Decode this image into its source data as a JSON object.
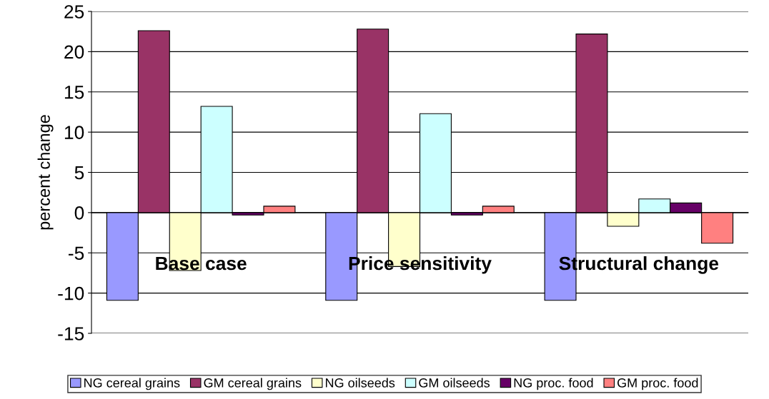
{
  "chart_data": {
    "type": "bar",
    "ylabel": "percent change",
    "categories": [
      "Base case",
      "Price sensitivity",
      "Structural change"
    ],
    "series": [
      {
        "name": "NG cereal grains",
        "color": "#9999ff",
        "values": [
          -10.9,
          -10.9,
          -10.9
        ]
      },
      {
        "name": "GM cereal grains",
        "color": "#993366",
        "values": [
          22.6,
          22.8,
          22.2
        ]
      },
      {
        "name": "NG oilseeds",
        "color": "#ffffcc",
        "values": [
          -7.2,
          -6.7,
          -1.7
        ]
      },
      {
        "name": "GM oilseeds",
        "color": "#ccffff",
        "values": [
          13.2,
          12.3,
          1.7
        ]
      },
      {
        "name": "NG proc. food",
        "color": "#660066",
        "values": [
          -0.3,
          -0.3,
          1.2
        ]
      },
      {
        "name": "GM proc. food",
        "color": "#ff8080",
        "values": [
          0.8,
          0.8,
          -3.8
        ]
      }
    ],
    "ylim": [
      -15,
      25
    ],
    "yticks": [
      -15,
      -10,
      -5,
      0,
      5,
      10,
      15,
      20,
      25
    ],
    "grid": "y",
    "legend": "bottom"
  }
}
